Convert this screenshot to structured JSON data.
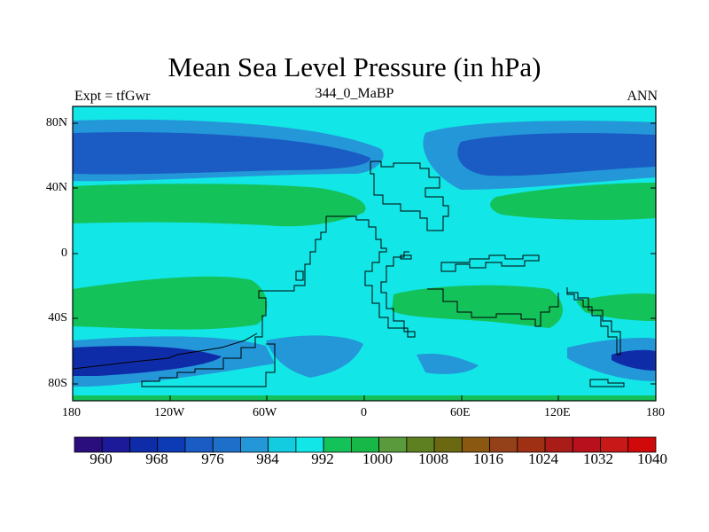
{
  "title": "Mean Sea Level Pressure (in hPa)",
  "left_string": "Expt = tfGwr",
  "center_string": "344_0_MaBP",
  "right_string": "ANN",
  "x_ticks": [
    "180",
    "120W",
    "60W",
    "0",
    "60E",
    "120E",
    "180"
  ],
  "y_ticks": [
    "80N",
    "40N",
    "0",
    "40S",
    "80S"
  ],
  "colorbar": {
    "colors": [
      "#2a0e7e",
      "#1c1a99",
      "#0f2ca8",
      "#0d3ab5",
      "#1a5cc4",
      "#1d6fc9",
      "#2497d9",
      "#14cce0",
      "#12e6e6",
      "#14c25a",
      "#18b848",
      "#5a9a3c",
      "#5f8020",
      "#6b6812",
      "#8a5810",
      "#944018",
      "#a03014",
      "#aa1c18",
      "#b8101c",
      "#c81818",
      "#d00a0a"
    ],
    "labels": [
      "960",
      "968",
      "976",
      "984",
      "992",
      "1000",
      "1008",
      "1016",
      "1024",
      "1032",
      "1040"
    ]
  },
  "palette": {
    "background": "#12e6e6",
    "low_deep": "#1a5cc4",
    "low_mid": "#2497d9",
    "low_deeper": "#0f2ca8",
    "high": "#14c25a",
    "outline": "#000000"
  }
}
